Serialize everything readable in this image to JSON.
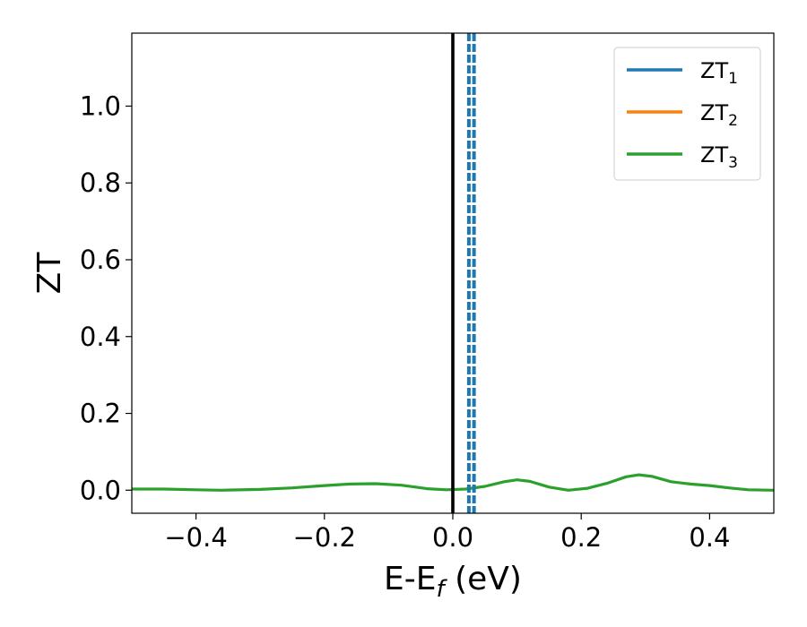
{
  "chart_data": {
    "type": "line",
    "xlabel": "E-E",
    "xlabel_sub": "f",
    "xlabel_unit": " (eV)",
    "ylabel": "ZT",
    "xlim": [
      -0.5,
      0.5
    ],
    "ylim": [
      -0.06,
      1.19
    ],
    "xticks": [
      -0.4,
      -0.2,
      0.0,
      0.2,
      0.4
    ],
    "xtick_labels": [
      "−0.4",
      "−0.2",
      "0.0",
      "0.2",
      "0.4"
    ],
    "yticks": [
      0.0,
      0.2,
      0.4,
      0.6,
      0.8,
      1.0
    ],
    "ytick_labels": [
      "0.0",
      "0.2",
      "0.4",
      "0.6",
      "0.8",
      "1.0"
    ],
    "grid": false,
    "legend_position": "top-right",
    "series": [
      {
        "name": "ZT",
        "name_sub": "1",
        "color": "#1f77b4",
        "x": [],
        "y": []
      },
      {
        "name": "ZT",
        "name_sub": "2",
        "color": "#ff7f0e",
        "x": [],
        "y": []
      },
      {
        "name": "ZT",
        "name_sub": "3",
        "color": "#2ca02c",
        "x": [
          -0.5,
          -0.45,
          -0.4,
          -0.36,
          -0.3,
          -0.25,
          -0.2,
          -0.16,
          -0.12,
          -0.08,
          -0.04,
          -0.01,
          0.02,
          0.05,
          0.08,
          0.1,
          0.12,
          0.15,
          0.18,
          0.21,
          0.24,
          0.27,
          0.29,
          0.31,
          0.34,
          0.37,
          0.4,
          0.43,
          0.46,
          0.5
        ],
        "y": [
          0.003,
          0.003,
          0.001,
          0.0,
          0.002,
          0.006,
          0.012,
          0.016,
          0.017,
          0.013,
          0.004,
          0.001,
          0.003,
          0.01,
          0.022,
          0.027,
          0.023,
          0.008,
          0.0,
          0.005,
          0.018,
          0.035,
          0.04,
          0.036,
          0.022,
          0.016,
          0.012,
          0.006,
          0.001,
          0.0
        ]
      }
    ],
    "reference_lines": [
      {
        "x": 0.0,
        "color": "#000000",
        "style": "solid"
      },
      {
        "x": 0.025,
        "color": "#1f77b4",
        "style": "dashed"
      },
      {
        "x": 0.033,
        "color": "#1f77b4",
        "style": "dashed"
      }
    ]
  }
}
